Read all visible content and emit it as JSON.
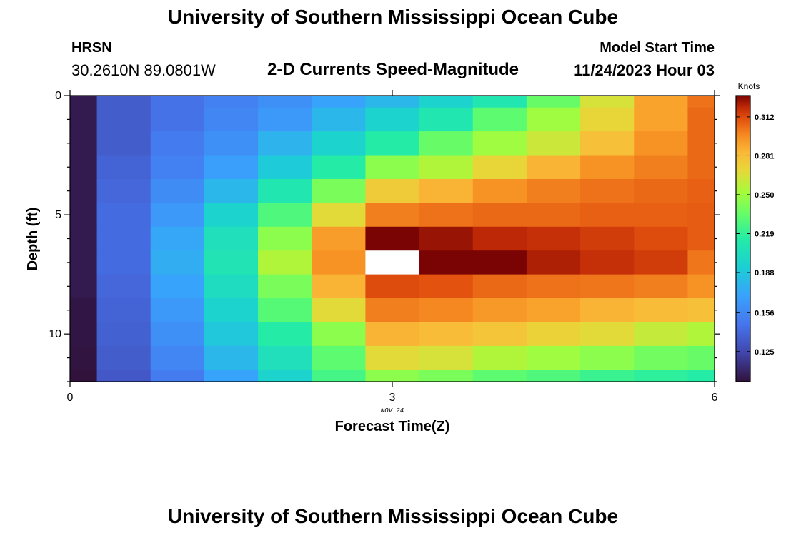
{
  "header": {
    "title": "University of Southern Mississippi Ocean Cube",
    "station_name": "HRSN",
    "station_coords": "30.2610N  89.0801W",
    "subtitle": "2-D Currents Speed-Magnitude",
    "run_label": "Model Start Time",
    "run_value": "11/24/2023 Hour 03"
  },
  "footer": {
    "title": "University of Southern Mississippi Ocean Cube"
  },
  "chart_data": {
    "type": "heatmap",
    "title": "2-D Currents Speed-Magnitude",
    "xlabel": "Forecast Time(Z)",
    "ylabel": "Depth (ft)",
    "x_sub_label": "NOV 24",
    "xlim": [
      0,
      6
    ],
    "ylim": [
      12,
      0
    ],
    "x_ticks": [
      0,
      3,
      6
    ],
    "y_ticks": [
      0,
      5,
      10
    ],
    "x_edges": [
      0,
      0.25,
      0.75,
      1.25,
      1.75,
      2.25,
      2.75,
      3.25,
      3.75,
      4.25,
      4.75,
      5.25,
      5.75,
      6
    ],
    "y_edges": [
      0,
      0.5,
      1.5,
      2.5,
      3.5,
      4.5,
      5.5,
      6.5,
      7.5,
      8.5,
      9.5,
      10.5,
      11.5,
      12
    ],
    "values": [
      [
        0.105,
        0.135,
        0.145,
        0.152,
        0.16,
        0.17,
        0.18,
        0.195,
        0.21,
        0.235,
        0.265,
        0.29,
        0.303
      ],
      [
        0.105,
        0.135,
        0.145,
        0.155,
        0.165,
        0.18,
        0.195,
        0.21,
        0.232,
        0.25,
        0.27,
        0.29,
        0.305
      ],
      [
        0.105,
        0.135,
        0.15,
        0.16,
        0.178,
        0.195,
        0.215,
        0.235,
        0.25,
        0.262,
        0.28,
        0.295,
        0.305
      ],
      [
        0.105,
        0.138,
        0.152,
        0.168,
        0.19,
        0.215,
        0.245,
        0.255,
        0.27,
        0.285,
        0.295,
        0.3,
        0.305
      ],
      [
        0.105,
        0.14,
        0.158,
        0.18,
        0.21,
        0.24,
        0.275,
        0.285,
        0.295,
        0.3,
        0.303,
        0.305,
        0.307
      ],
      [
        0.105,
        0.142,
        0.165,
        0.195,
        0.228,
        0.268,
        0.3,
        0.303,
        0.305,
        0.305,
        0.307,
        0.307,
        0.308
      ],
      [
        0.105,
        0.142,
        0.172,
        0.205,
        0.245,
        0.292,
        0.33,
        0.325,
        0.32,
        0.318,
        0.315,
        0.312,
        0.308
      ],
      [
        0.105,
        0.142,
        0.175,
        0.208,
        0.255,
        0.295,
        null,
        0.34,
        0.33,
        0.322,
        0.318,
        0.315,
        0.302
      ],
      [
        0.105,
        0.14,
        0.17,
        0.202,
        0.24,
        0.285,
        0.312,
        0.31,
        0.305,
        0.303,
        0.302,
        0.3,
        0.295
      ],
      [
        0.103,
        0.138,
        0.165,
        0.195,
        0.23,
        0.268,
        0.3,
        0.298,
        0.293,
        0.29,
        0.285,
        0.282,
        0.28
      ],
      [
        0.103,
        0.137,
        0.16,
        0.188,
        0.215,
        0.245,
        0.285,
        0.282,
        0.278,
        0.272,
        0.268,
        0.26,
        0.255
      ],
      [
        0.102,
        0.135,
        0.155,
        0.18,
        0.205,
        0.232,
        0.268,
        0.265,
        0.255,
        0.25,
        0.245,
        0.238,
        0.235
      ],
      [
        0.101,
        0.133,
        0.15,
        0.17,
        0.195,
        0.225,
        0.245,
        0.24,
        0.232,
        0.228,
        0.222,
        0.218,
        0.215
      ]
    ],
    "missing_value_color": "#ffffff",
    "colorbar": {
      "unit": "Knots",
      "range": [
        0.101,
        0.329
      ],
      "ticks": [
        "0.125",
        "0.156",
        "0.188",
        "0.219",
        "0.250",
        "0.281",
        "0.312"
      ]
    },
    "grid": false
  }
}
